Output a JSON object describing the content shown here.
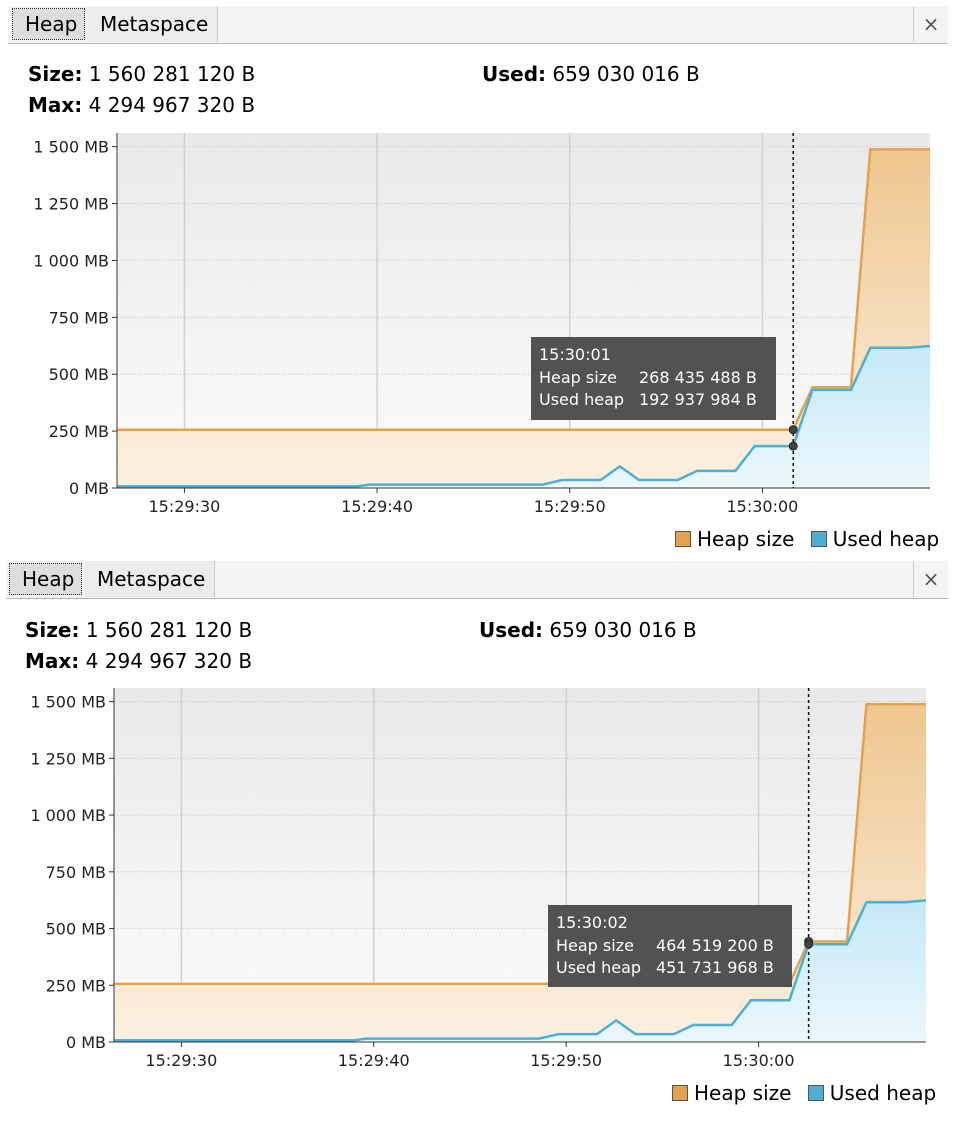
{
  "colors": {
    "heap_size": "#e4a24e",
    "used_heap": "#50aed2",
    "plot_bg": "#f2f2f2"
  },
  "panels": [
    {
      "tabs": [
        {
          "label": "Heap",
          "active": true
        },
        {
          "label": "Metaspace",
          "active": false
        }
      ],
      "close_icon": "×",
      "size_label": "Size:",
      "size_value": "1 560 281 120 B",
      "used_label": "Used:",
      "used_value": "659 030 016 B",
      "max_label": "Max:",
      "max_value": "4 294 967 320 B",
      "legend": {
        "heap_size": "Heap size",
        "used_heap": "Used heap"
      },
      "tooltip": {
        "time": "15:30:01",
        "heap_label": "Heap size",
        "heap_value": "268 435 488 B",
        "used_label": "Used heap",
        "used_value": "192 937 984 B"
      }
    },
    {
      "tabs": [
        {
          "label": "Heap",
          "active": true
        },
        {
          "label": "Metaspace",
          "active": false
        }
      ],
      "close_icon": "×",
      "size_label": "Size:",
      "size_value": "1 560 281 120 B",
      "used_label": "Used:",
      "used_value": "659 030 016 B",
      "max_label": "Max:",
      "max_value": "4 294 967 320 B",
      "legend": {
        "heap_size": "Heap size",
        "used_heap": "Used heap"
      },
      "tooltip": {
        "time": "15:30:02",
        "heap_label": "Heap size",
        "heap_value": "464 519 200 B",
        "used_label": "Used heap",
        "used_value": "451 731 968 B"
      }
    }
  ],
  "chart_data": [
    {
      "type": "area",
      "xlabel": "",
      "ylabel": "",
      "x_unit": "seconds after 15:29:26",
      "xlim": [
        0,
        42.2
      ],
      "ylim": [
        0,
        1560
      ],
      "y_ticks": [
        0,
        250,
        500,
        750,
        1000,
        1250,
        1500
      ],
      "y_tick_labels": [
        "0 MB",
        "250 MB",
        "500 MB",
        "750 MB",
        "1 000 MB",
        "1 250 MB",
        "1 500 MB"
      ],
      "x_ticks": [
        3.5,
        13.5,
        23.5,
        33.5
      ],
      "x_tick_labels": [
        "15:29:30",
        "15:29:40",
        "15:29:50",
        "15:30:00"
      ],
      "cursor_x": 35.1,
      "grid": true,
      "legend_position": "bottom-right",
      "series": [
        {
          "name": "Heap size",
          "x": [
            0,
            35.1,
            36.1,
            38.1,
            39.1,
            42.2
          ],
          "values": [
            256,
            256,
            443,
            443,
            1488,
            1488
          ]
        },
        {
          "name": "Used heap",
          "x": [
            0,
            12.5,
            13.1,
            22.1,
            23.1,
            25.1,
            26.1,
            27.1,
            29.1,
            30.1,
            32.1,
            33.1,
            35.1,
            36.1,
            38.1,
            39.1,
            41.1,
            42.2
          ],
          "values": [
            8,
            8,
            15,
            15,
            35,
            35,
            95,
            35,
            35,
            75,
            75,
            184,
            184,
            431,
            431,
            616,
            616,
            624
          ]
        }
      ]
    },
    {
      "type": "area",
      "xlabel": "",
      "ylabel": "",
      "x_unit": "seconds after 15:29:26",
      "xlim": [
        0,
        42.2
      ],
      "ylim": [
        0,
        1560
      ],
      "y_ticks": [
        0,
        250,
        500,
        750,
        1000,
        1250,
        1500
      ],
      "y_tick_labels": [
        "0 MB",
        "250 MB",
        "500 MB",
        "750 MB",
        "1 000 MB",
        "1 250 MB",
        "1 500 MB"
      ],
      "x_ticks": [
        3.5,
        13.5,
        23.5,
        33.5
      ],
      "x_tick_labels": [
        "15:29:30",
        "15:29:40",
        "15:29:50",
        "15:30:00"
      ],
      "cursor_x": 36.1,
      "grid": true,
      "legend_position": "bottom-right",
      "series": [
        {
          "name": "Heap size",
          "x": [
            0,
            35.1,
            36.1,
            38.1,
            39.1,
            42.2
          ],
          "values": [
            256,
            256,
            443,
            443,
            1488,
            1488
          ]
        },
        {
          "name": "Used heap",
          "x": [
            0,
            12.5,
            13.1,
            22.1,
            23.1,
            25.1,
            26.1,
            27.1,
            29.1,
            30.1,
            32.1,
            33.1,
            35.1,
            36.1,
            38.1,
            39.1,
            41.1,
            42.2
          ],
          "values": [
            8,
            8,
            15,
            15,
            35,
            35,
            95,
            35,
            35,
            75,
            75,
            184,
            184,
            431,
            431,
            616,
            616,
            624
          ]
        }
      ]
    }
  ]
}
